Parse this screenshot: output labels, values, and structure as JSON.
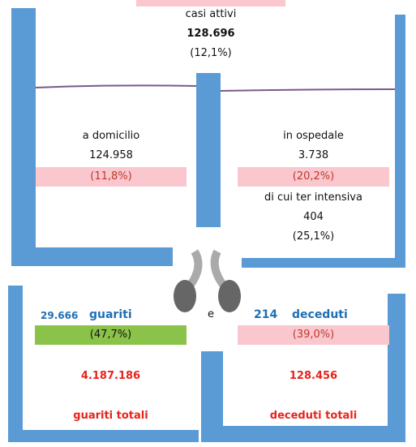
{
  "active": {
    "label": "casi attivi",
    "value": "128.696",
    "percent": "(12,1%)"
  },
  "home": {
    "label": "a domicilio",
    "value": "124.958",
    "percent": "(11,8%)"
  },
  "hospital": {
    "label": "in ospedale",
    "value": "3.738",
    "percent": "(20,2%)",
    "icu_label": "di cui ter intensiva",
    "icu_value": "404",
    "icu_percent": "(25,1%)"
  },
  "recovered": {
    "value": "29.666",
    "label": "guariti",
    "percent": "(47,7%)",
    "total": "4.187.186",
    "total_label": "guariti totali"
  },
  "conjunction": "e",
  "deceased": {
    "value": "214",
    "label": "deceduti",
    "percent": "(39,0%)",
    "total": "128.456",
    "total_label": "deceduti totali"
  }
}
